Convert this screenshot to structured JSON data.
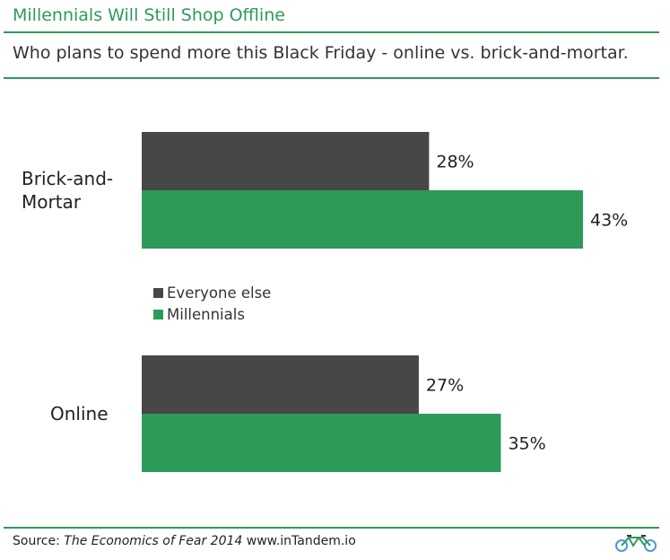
{
  "header": {
    "title": "Millennials Will Still Shop Offline",
    "subtitle": "Who plans to spend more this Black Friday - online vs. brick-and-mortar."
  },
  "chart_data": {
    "type": "bar",
    "orientation": "horizontal",
    "categories": [
      "Brick-and-Mortar",
      "Online"
    ],
    "category_label_lines": [
      [
        "Brick-and-",
        "Mortar"
      ],
      [
        "Online"
      ]
    ],
    "series": [
      {
        "name": "Everyone else",
        "values": [
          28,
          27
        ],
        "color": "#474747"
      },
      {
        "name": "Millennials",
        "values": [
          43,
          35
        ],
        "color": "#2e9a5a"
      }
    ],
    "value_labels": [
      [
        "28%",
        "27%"
      ],
      [
        "43%",
        "35%"
      ]
    ],
    "xlim": [
      0,
      43
    ],
    "grid": false,
    "legend_position": "center-left"
  },
  "footer": {
    "source_prefix": "Source: ",
    "source_title": "The Economics of Fear 2014",
    "source_suffix": " www.inTandem.io"
  },
  "icons": {
    "logo": "tandem-bicycle-icon"
  }
}
